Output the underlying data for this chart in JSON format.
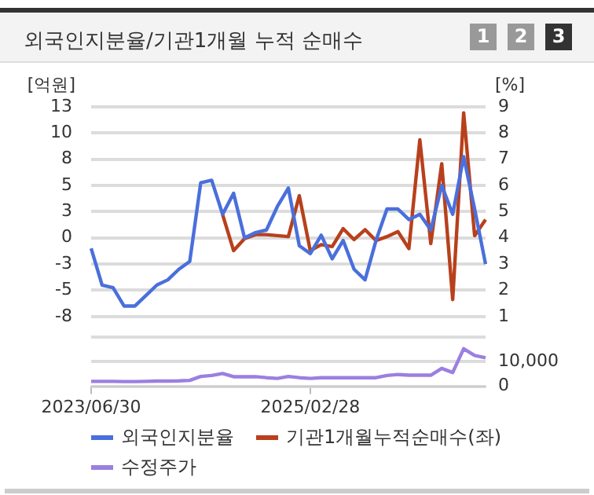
{
  "chart_data": [
    {
      "type": "line",
      "title": "외국인지분율/기관1개월 누적 순매수",
      "annotations": [
        "1",
        "2",
        "3"
      ],
      "ylabel": "[억원]",
      "y2label": "[%]",
      "categories": [
        "2023/06/30",
        null,
        null,
        null,
        null,
        null,
        null,
        null,
        null,
        null,
        null,
        null,
        null,
        null,
        null,
        null,
        null,
        null,
        null,
        null,
        "2025/02/28",
        null,
        null,
        null,
        null,
        null,
        null,
        null,
        null,
        null,
        null,
        null,
        null,
        null,
        null,
        null,
        null
      ],
      "series": [
        {
          "name": "외국인지분율",
          "color": "#4a6fdc",
          "axis": "y2",
          "values": [
            3.6,
            2.2,
            2.1,
            1.4,
            1.4,
            1.8,
            2.2,
            2.4,
            2.8,
            3.1,
            6.1,
            6.2,
            4.9,
            5.7,
            4.0,
            4.2,
            4.3,
            5.2,
            5.9,
            3.7,
            3.4,
            4.1,
            3.2,
            3.9,
            2.8,
            2.4,
            3.9,
            5.1,
            5.1,
            4.7,
            4.9,
            4.3,
            6.0,
            4.9,
            7.1,
            5.1,
            3.0
          ]
        },
        {
          "name": "기관1개월누적순매수(좌)",
          "color": "#b8401c",
          "axis": "y",
          "values": [
            null,
            null,
            null,
            null,
            null,
            null,
            null,
            null,
            null,
            null,
            null,
            null,
            2.2,
            -1.4,
            -0.2,
            0.2,
            0.2,
            0.1,
            0.0,
            4.1,
            -1.4,
            -0.8,
            -1.0,
            0.8,
            -0.3,
            0.7,
            -0.4,
            0.0,
            0.5,
            -1.2,
            9.7,
            -0.7,
            7.3,
            -6.3,
            12.4,
            0.1,
            1.7
          ]
        }
      ],
      "ylim": [
        -8,
        13
      ],
      "yticks": [
        {
          "value": 13,
          "label": "13"
        },
        {
          "value": 10.375,
          "label": "10"
        },
        {
          "value": 7.75,
          "label": "8"
        },
        {
          "value": 5.125,
          "label": "5"
        },
        {
          "value": 2.5,
          "label": "3"
        },
        {
          "value": -0.125,
          "label": "0"
        },
        {
          "value": -2.75,
          "label": "-3"
        },
        {
          "value": -5.375,
          "label": "-5"
        },
        {
          "value": -8,
          "label": "-8"
        }
      ],
      "y2lim": [
        1,
        9
      ],
      "y2ticks": [
        1,
        2,
        3,
        4,
        5,
        6,
        7,
        8,
        9
      ],
      "grid": "y",
      "legend": "bottom",
      "tick_labels": "y",
      "marker": "none",
      "line_style": "solid"
    },
    {
      "type": "line",
      "categories": [
        "2023/06/30",
        null,
        null,
        null,
        null,
        null,
        null,
        null,
        null,
        null,
        null,
        null,
        null,
        null,
        null,
        null,
        null,
        null,
        null,
        null,
        "2025/02/28",
        null,
        null,
        null,
        null,
        null,
        null,
        null,
        null,
        null,
        null,
        null,
        null,
        null,
        null,
        null,
        null
      ],
      "series": [
        {
          "name": "수정주가",
          "color": "#9b7fe0",
          "axis": "y2",
          "values": [
            2000,
            2000,
            2000,
            1900,
            1900,
            2000,
            2100,
            2100,
            2200,
            2400,
            4000,
            4400,
            5200,
            3900,
            3900,
            3900,
            3500,
            3200,
            4000,
            3500,
            3200,
            3500,
            3500,
            3500,
            3500,
            3500,
            3500,
            4400,
            4800,
            4500,
            4500,
            4500,
            7300,
            5600,
            15300,
            12600,
            11600
          ]
        }
      ],
      "y2lim": [
        0,
        20000
      ],
      "y2ticks": [
        0,
        {
          "value": 10000,
          "label": "10,000"
        },
        {
          "value": 20000,
          "label": null
        }
      ],
      "grid": "y",
      "legend": "bottom",
      "marker": "none",
      "line_style": "solid"
    }
  ]
}
